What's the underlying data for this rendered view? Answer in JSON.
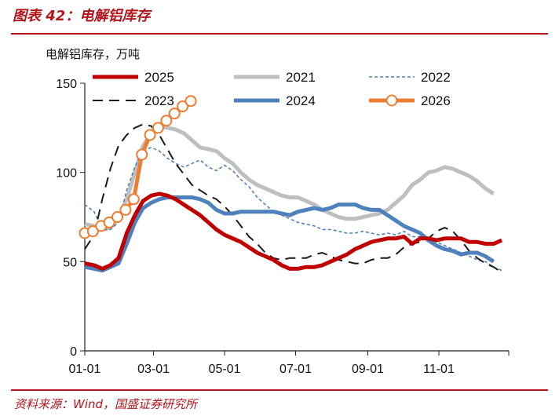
{
  "header": {
    "title": "图表 42：电解铝库存"
  },
  "footer": {
    "source": "资料来源：Wind，国盛证券研究所"
  },
  "chart_data": {
    "type": "line",
    "ylabel": "电解铝库存，万吨",
    "ylim": [
      0,
      150
    ],
    "yticks": [
      0,
      50,
      100,
      150
    ],
    "xlim": [
      1,
      365
    ],
    "xticks": [
      {
        "label": "01-01",
        "day": 1
      },
      {
        "label": "03-01",
        "day": 60
      },
      {
        "label": "05-01",
        "day": 121
      },
      {
        "label": "07-01",
        "day": 182
      },
      {
        "label": "09-01",
        "day": 244
      },
      {
        "label": "11-01",
        "day": 305
      }
    ],
    "x_unit": "day of year",
    "legend_position": "top",
    "grid": false,
    "series": [
      {
        "name": "2025",
        "color": "#c00000",
        "style": "solid-thick",
        "points": [
          [
            1,
            49
          ],
          [
            9,
            48
          ],
          [
            16,
            46
          ],
          [
            23,
            48
          ],
          [
            30,
            52
          ],
          [
            37,
            66
          ],
          [
            44,
            76
          ],
          [
            51,
            84
          ],
          [
            58,
            87
          ],
          [
            65,
            88
          ],
          [
            72,
            87
          ],
          [
            79,
            85
          ],
          [
            86,
            82
          ],
          [
            93,
            79
          ],
          [
            100,
            76
          ],
          [
            107,
            72
          ],
          [
            114,
            68
          ],
          [
            121,
            65
          ],
          [
            128,
            63
          ],
          [
            135,
            61
          ],
          [
            142,
            58
          ],
          [
            149,
            55
          ],
          [
            156,
            53
          ],
          [
            163,
            51
          ],
          [
            170,
            48
          ],
          [
            177,
            46
          ],
          [
            184,
            46
          ],
          [
            191,
            47
          ],
          [
            198,
            47
          ],
          [
            205,
            48
          ],
          [
            212,
            50
          ],
          [
            219,
            52
          ],
          [
            226,
            54
          ],
          [
            233,
            57
          ],
          [
            240,
            59
          ],
          [
            247,
            61
          ],
          [
            254,
            62
          ],
          [
            261,
            63
          ],
          [
            268,
            63
          ],
          [
            275,
            64
          ],
          [
            282,
            60
          ],
          [
            289,
            63
          ],
          [
            296,
            63
          ],
          [
            303,
            62
          ],
          [
            310,
            63
          ],
          [
            317,
            63
          ],
          [
            324,
            63
          ],
          [
            331,
            61
          ],
          [
            338,
            61
          ],
          [
            345,
            60
          ],
          [
            352,
            60
          ],
          [
            359,
            62
          ]
        ]
      },
      {
        "name": "2021",
        "color": "#bfbfbf",
        "style": "solid-thick",
        "points": [
          [
            1,
            71
          ],
          [
            9,
            70
          ],
          [
            16,
            68
          ],
          [
            23,
            69
          ],
          [
            30,
            74
          ],
          [
            37,
            85
          ],
          [
            44,
            100
          ],
          [
            51,
            115
          ],
          [
            58,
            122
          ],
          [
            65,
            126
          ],
          [
            72,
            125
          ],
          [
            79,
            124
          ],
          [
            86,
            122
          ],
          [
            93,
            118
          ],
          [
            100,
            114
          ],
          [
            107,
            113
          ],
          [
            114,
            112
          ],
          [
            121,
            108
          ],
          [
            128,
            105
          ],
          [
            135,
            100
          ],
          [
            142,
            96
          ],
          [
            149,
            93
          ],
          [
            156,
            91
          ],
          [
            163,
            89
          ],
          [
            170,
            87
          ],
          [
            177,
            86
          ],
          [
            184,
            86
          ],
          [
            191,
            84
          ],
          [
            198,
            82
          ],
          [
            205,
            79
          ],
          [
            212,
            77
          ],
          [
            219,
            75
          ],
          [
            226,
            74
          ],
          [
            233,
            74
          ],
          [
            240,
            75
          ],
          [
            247,
            76
          ],
          [
            254,
            77
          ],
          [
            261,
            79
          ],
          [
            268,
            83
          ],
          [
            275,
            87
          ],
          [
            282,
            93
          ],
          [
            289,
            96
          ],
          [
            296,
            100
          ],
          [
            303,
            101
          ],
          [
            310,
            103
          ],
          [
            317,
            102
          ],
          [
            324,
            100
          ],
          [
            331,
            98
          ],
          [
            338,
            95
          ],
          [
            345,
            91
          ],
          [
            352,
            88
          ]
        ]
      },
      {
        "name": "2022",
        "color": "#4f81bd",
        "style": "dotted",
        "points": [
          [
            1,
            82
          ],
          [
            9,
            78
          ],
          [
            16,
            68
          ],
          [
            23,
            68
          ],
          [
            30,
            72
          ],
          [
            37,
            90
          ],
          [
            44,
            103
          ],
          [
            51,
            112
          ],
          [
            58,
            114
          ],
          [
            65,
            112
          ],
          [
            72,
            108
          ],
          [
            79,
            105
          ],
          [
            86,
            103
          ],
          [
            93,
            105
          ],
          [
            100,
            107
          ],
          [
            107,
            103
          ],
          [
            114,
            101
          ],
          [
            121,
            104
          ],
          [
            128,
            101
          ],
          [
            135,
            96
          ],
          [
            142,
            92
          ],
          [
            149,
            86
          ],
          [
            156,
            82
          ],
          [
            163,
            78
          ],
          [
            170,
            76
          ],
          [
            177,
            74
          ],
          [
            184,
            72
          ],
          [
            191,
            71
          ],
          [
            198,
            70
          ],
          [
            205,
            68
          ],
          [
            212,
            68
          ],
          [
            219,
            67
          ],
          [
            226,
            66
          ],
          [
            233,
            66
          ],
          [
            240,
            67
          ],
          [
            247,
            66
          ],
          [
            254,
            65
          ],
          [
            261,
            66
          ],
          [
            268,
            65
          ],
          [
            275,
            67
          ],
          [
            282,
            64
          ],
          [
            289,
            64
          ],
          [
            296,
            63
          ],
          [
            303,
            61
          ],
          [
            310,
            59
          ],
          [
            317,
            57
          ],
          [
            324,
            55
          ],
          [
            331,
            53
          ],
          [
            338,
            51
          ],
          [
            345,
            50
          ],
          [
            352,
            47
          ],
          [
            359,
            45
          ]
        ]
      },
      {
        "name": "2023",
        "color": "#1a1a1a",
        "style": "dashed",
        "points": [
          [
            1,
            57
          ],
          [
            9,
            65
          ],
          [
            16,
            85
          ],
          [
            23,
            102
          ],
          [
            30,
            115
          ],
          [
            37,
            121
          ],
          [
            44,
            125
          ],
          [
            51,
            127
          ],
          [
            58,
            126
          ],
          [
            65,
            121
          ],
          [
            72,
            113
          ],
          [
            79,
            105
          ],
          [
            86,
            99
          ],
          [
            93,
            93
          ],
          [
            100,
            90
          ],
          [
            107,
            87
          ],
          [
            114,
            85
          ],
          [
            121,
            81
          ],
          [
            128,
            76
          ],
          [
            135,
            70
          ],
          [
            142,
            64
          ],
          [
            149,
            60
          ],
          [
            156,
            55
          ],
          [
            163,
            52
          ],
          [
            170,
            51
          ],
          [
            177,
            52
          ],
          [
            184,
            52
          ],
          [
            191,
            52
          ],
          [
            198,
            54
          ],
          [
            205,
            55
          ],
          [
            212,
            53
          ],
          [
            219,
            51
          ],
          [
            226,
            50
          ],
          [
            233,
            49
          ],
          [
            240,
            49
          ],
          [
            247,
            51
          ],
          [
            254,
            52
          ],
          [
            261,
            52
          ],
          [
            268,
            54
          ],
          [
            275,
            58
          ],
          [
            282,
            60
          ],
          [
            289,
            61
          ],
          [
            296,
            63
          ],
          [
            303,
            67
          ],
          [
            310,
            69
          ],
          [
            317,
            67
          ],
          [
            324,
            62
          ],
          [
            331,
            56
          ],
          [
            338,
            52
          ],
          [
            345,
            49
          ],
          [
            352,
            47
          ],
          [
            359,
            44
          ]
        ]
      },
      {
        "name": "2024",
        "color": "#4f81bd",
        "style": "solid-thick",
        "points": [
          [
            1,
            47
          ],
          [
            9,
            46
          ],
          [
            16,
            45
          ],
          [
            23,
            47
          ],
          [
            30,
            49
          ],
          [
            37,
            60
          ],
          [
            44,
            72
          ],
          [
            51,
            80
          ],
          [
            58,
            83
          ],
          [
            65,
            85
          ],
          [
            72,
            86
          ],
          [
            79,
            86
          ],
          [
            86,
            86
          ],
          [
            93,
            86
          ],
          [
            100,
            85
          ],
          [
            107,
            83
          ],
          [
            114,
            79
          ],
          [
            121,
            77
          ],
          [
            128,
            77
          ],
          [
            135,
            78
          ],
          [
            142,
            78
          ],
          [
            149,
            78
          ],
          [
            156,
            78
          ],
          [
            163,
            78
          ],
          [
            170,
            77
          ],
          [
            177,
            76
          ],
          [
            184,
            78
          ],
          [
            191,
            79
          ],
          [
            198,
            80
          ],
          [
            205,
            79
          ],
          [
            212,
            80
          ],
          [
            219,
            82
          ],
          [
            226,
            82
          ],
          [
            233,
            82
          ],
          [
            240,
            80
          ],
          [
            247,
            79
          ],
          [
            254,
            79
          ],
          [
            261,
            76
          ],
          [
            268,
            73
          ],
          [
            275,
            70
          ],
          [
            282,
            68
          ],
          [
            289,
            66
          ],
          [
            296,
            62
          ],
          [
            303,
            59
          ],
          [
            310,
            57
          ],
          [
            317,
            56
          ],
          [
            324,
            54
          ],
          [
            331,
            55
          ],
          [
            338,
            55
          ],
          [
            345,
            53
          ],
          [
            352,
            50
          ]
        ]
      },
      {
        "name": "2026",
        "color": "#ed7d31",
        "style": "solid-markers",
        "points": [
          [
            1,
            66
          ],
          [
            8,
            67
          ],
          [
            15,
            70
          ],
          [
            22,
            72
          ],
          [
            29,
            75
          ],
          [
            36,
            79
          ],
          [
            43,
            85
          ],
          [
            50,
            110
          ],
          [
            57,
            121
          ],
          [
            64,
            125
          ],
          [
            71,
            129
          ],
          [
            78,
            133
          ],
          [
            85,
            137
          ],
          [
            92,
            140
          ]
        ]
      }
    ]
  }
}
